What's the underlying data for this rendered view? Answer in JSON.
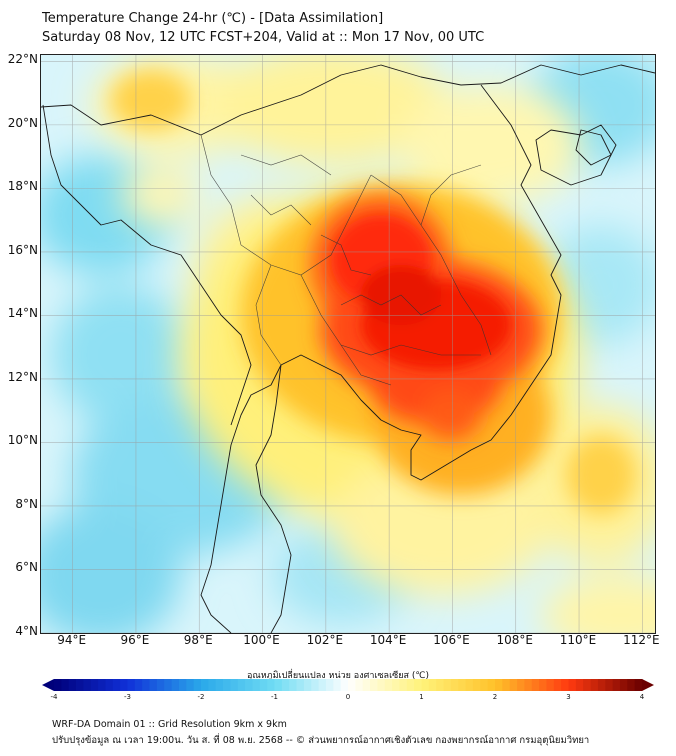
{
  "header": {
    "title": "Temperature Change 24-hr (℃) - [Data Assimilation]",
    "subtitle": "Saturday 08 Nov, 12 UTC FCST+204, Valid at :: Mon 17 Nov, 00 UTC"
  },
  "map": {
    "lat_labels": [
      "22°N",
      "20°N",
      "18°N",
      "16°N",
      "14°N",
      "12°N",
      "10°N",
      "8°N",
      "6°N",
      "4°N"
    ],
    "lon_labels": [
      "94°E",
      "96°E",
      "98°E",
      "100°E",
      "102°E",
      "104°E",
      "106°E",
      "108°E",
      "110°E",
      "112°E"
    ],
    "lat_range": [
      4,
      22.2
    ],
    "lon_range": [
      93,
      112.4
    ]
  },
  "colorbar": {
    "label": "อุณหภูมิเปลี่ยนแปลง หน่วย องศาเซลเซียส (℃)",
    "ticks": [
      "-4",
      "-3",
      "-2",
      "-1",
      "0",
      "1",
      "2",
      "3",
      "4"
    ],
    "range": [
      -4,
      4
    ]
  },
  "footer": {
    "line1": "WRF-DA Domain 01 :: Grid Resolution 9km x 9km",
    "line2": "ปรับปรุงข้อมูล ณ เวลา 19:00น. วัน ส. ที่ 08 พ.ย. 2568 -- © ส่วนพยากรณ์อากาศเชิงตัวเลข กองพยากรณ์อากาศ กรมอุตุนิยมวิทยา"
  },
  "colors": {
    "neg4": "#00007a",
    "neg3": "#1030d8",
    "neg2": "#2aa8ea",
    "neg1": "#6fdcf3",
    "zero": "#ffffff",
    "pos1": "#fff27a",
    "pos2": "#ffc22a",
    "pos3": "#ff3a10",
    "pos4": "#6b0000"
  }
}
